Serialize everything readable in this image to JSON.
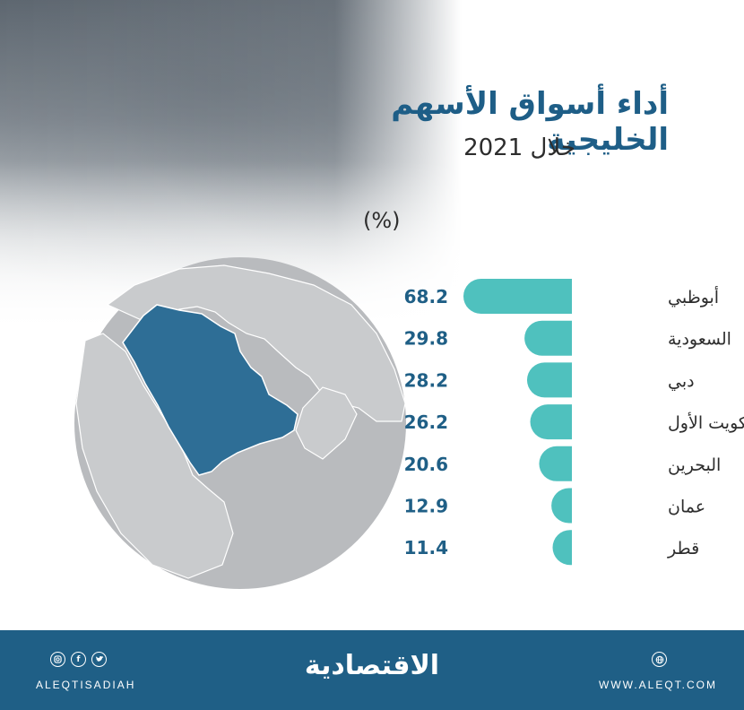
{
  "title": "أداء أسواق الأسهم الخليجية",
  "subtitle": "خلال 2021",
  "unit": "(%)",
  "colors": {
    "bar": "#4fc1be",
    "title": "#1e5e87",
    "map_land": "#c9cbcd",
    "map_highlight": "#2e6e96",
    "map_circle": "#b9bbbe",
    "footer": "#1f5f86"
  },
  "chart_data": {
    "type": "bar",
    "orientation": "horizontal",
    "title": "أداء أسواق الأسهم الخليجية",
    "subtitle": "خلال 2021",
    "unit": "(%)",
    "categories": [
      "أبوظبي",
      "السعودية",
      "دبي",
      "الكويت الأول",
      "البحرين",
      "عمان",
      "قطر"
    ],
    "values": [
      68.2,
      29.8,
      28.2,
      26.2,
      20.6,
      12.9,
      11.4
    ],
    "value_labels": [
      "68.2",
      "29.8",
      "28.2",
      "26.2",
      "20.6",
      "12.9",
      "11.4"
    ],
    "xlim": [
      0,
      68.2
    ]
  },
  "map": {
    "highlight_icon": "saudi-arabia-map"
  },
  "footer": {
    "handle": "ALEQTISADIAH",
    "brand": "الاقتصادية",
    "site": "WWW.ALEQT.COM",
    "social_icons": [
      "instagram-icon",
      "facebook-icon",
      "twitter-icon"
    ],
    "site_icon": "web-icon"
  }
}
